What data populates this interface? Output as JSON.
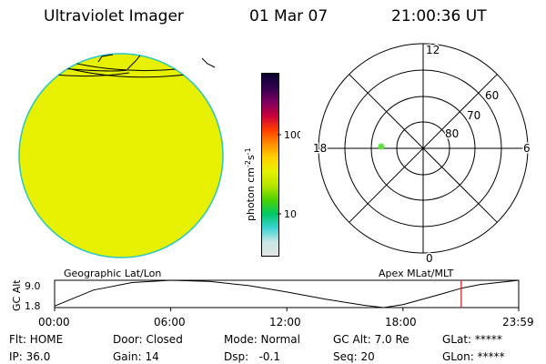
{
  "header": {
    "title": "Ultraviolet Imager",
    "date": "01 Mar 07",
    "time": "21:00:36 UT"
  },
  "colors": {
    "disk_fill": "#e6f000",
    "disk_edge": "#27c7c0",
    "spot": "#5fe040",
    "cursor": "#d61818"
  },
  "image_panel": {
    "left_label": "Geographic Lat/Lon",
    "right_label": "Apex MLat/MLT"
  },
  "colorbar": {
    "label": "photon cm-2s-1",
    "ticks": [
      "100",
      "10"
    ],
    "stops": [
      "#e6e6e6",
      "#c8e6e6",
      "#39d2d2",
      "#00c864",
      "#4ed200",
      "#b4e600",
      "#e6f000",
      "#ffd200",
      "#ff8c00",
      "#ff3c00",
      "#c8003c",
      "#7a0060",
      "#320050",
      "#0a0030"
    ]
  },
  "polar_plot": {
    "mlt_labels": {
      "top": "12",
      "left": "18",
      "right": "6",
      "bottom": "0"
    },
    "mlat_labels": [
      "60",
      "70",
      "80"
    ]
  },
  "chart_data": {
    "type": "line",
    "title": "",
    "ylabel": "GC Alt",
    "y_ticks": [
      "9.0",
      "1.8"
    ],
    "ylim": [
      1.8,
      9.0
    ],
    "x_ticks": [
      "00:00",
      "06:00",
      "12:00",
      "18:00",
      "23:59"
    ],
    "x_hours": [
      0,
      2,
      4,
      6,
      8,
      10,
      11,
      12,
      14,
      16,
      17,
      18,
      20,
      21,
      22,
      23.98
    ],
    "series": [
      {
        "values": [
          2.2,
          6.4,
          8.4,
          9.0,
          8.7,
          7.6,
          6.8,
          5.9,
          4.0,
          2.4,
          1.8,
          2.6,
          5.4,
          6.9,
          7.9,
          9.0
        ]
      }
    ],
    "cursor_hour": 21.01
  },
  "footer": {
    "row1": [
      "Flt: HOME",
      "Door: Closed",
      "Mode: Normal",
      "GC Alt: 7.0 Re",
      "GLat: *****"
    ],
    "row2": [
      "IP: 36.0",
      "Gain: 14",
      "Dsp:   -0.1",
      "Seq: 20",
      "GLon: *****"
    ]
  }
}
